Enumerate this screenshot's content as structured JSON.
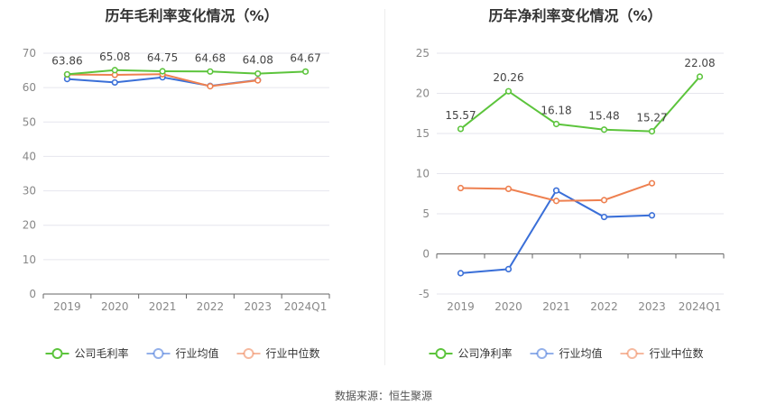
{
  "charts": {
    "left": {
      "title": "历年毛利率变化情况（%）"
    },
    "right": {
      "title": "历年净利率变化情况（%）"
    }
  },
  "source": "数据来源：恒生聚源",
  "colors": {
    "company": "#5cc43c",
    "industry_avg": "#3a6fd8",
    "industry_median": "#ee8050",
    "grid": "#e6e6ee",
    "axis_text": "#888888",
    "label_text": "#444444"
  },
  "chart_data": [
    {
      "type": "line",
      "title": "历年毛利率变化情况（%）",
      "categories": [
        "2019",
        "2020",
        "2021",
        "2022",
        "2023",
        "2024Q1"
      ],
      "ylim": [
        0,
        70
      ],
      "yticks": [
        0,
        10,
        20,
        30,
        40,
        50,
        60,
        70
      ],
      "grid": true,
      "legend_position": "bottom",
      "series": [
        {
          "name": "公司毛利率",
          "key": "company",
          "values": [
            63.86,
            65.08,
            64.75,
            64.68,
            64.08,
            64.67
          ],
          "labels": [
            "63.86",
            "65.08",
            "64.75",
            "64.68",
            "64.08",
            "64.67"
          ]
        },
        {
          "name": "行业均值",
          "key": "industry_avg",
          "values": [
            62.5,
            61.5,
            63.0,
            60.5,
            62.2,
            null
          ]
        },
        {
          "name": "行业中位数",
          "key": "industry_median",
          "values": [
            63.8,
            63.7,
            63.9,
            60.4,
            62.1,
            null
          ]
        }
      ]
    },
    {
      "type": "line",
      "title": "历年净利率变化情况（%）",
      "categories": [
        "2019",
        "2020",
        "2021",
        "2022",
        "2023",
        "2024Q1"
      ],
      "ylim": [
        -5,
        25
      ],
      "yticks": [
        -5,
        0,
        5,
        10,
        15,
        20,
        25
      ],
      "grid": true,
      "legend_position": "bottom",
      "series": [
        {
          "name": "公司净利率",
          "key": "company",
          "values": [
            15.57,
            20.26,
            16.18,
            15.48,
            15.27,
            22.08
          ],
          "labels": [
            "15.57",
            "20.26",
            "16.18",
            "15.48",
            "15.27",
            "22.08"
          ]
        },
        {
          "name": "行业均值",
          "key": "industry_avg",
          "values": [
            -2.4,
            -1.9,
            7.9,
            4.6,
            4.8,
            null
          ]
        },
        {
          "name": "行业中位数",
          "key": "industry_median",
          "values": [
            8.2,
            8.1,
            6.6,
            6.7,
            8.8,
            null
          ]
        }
      ]
    }
  ]
}
